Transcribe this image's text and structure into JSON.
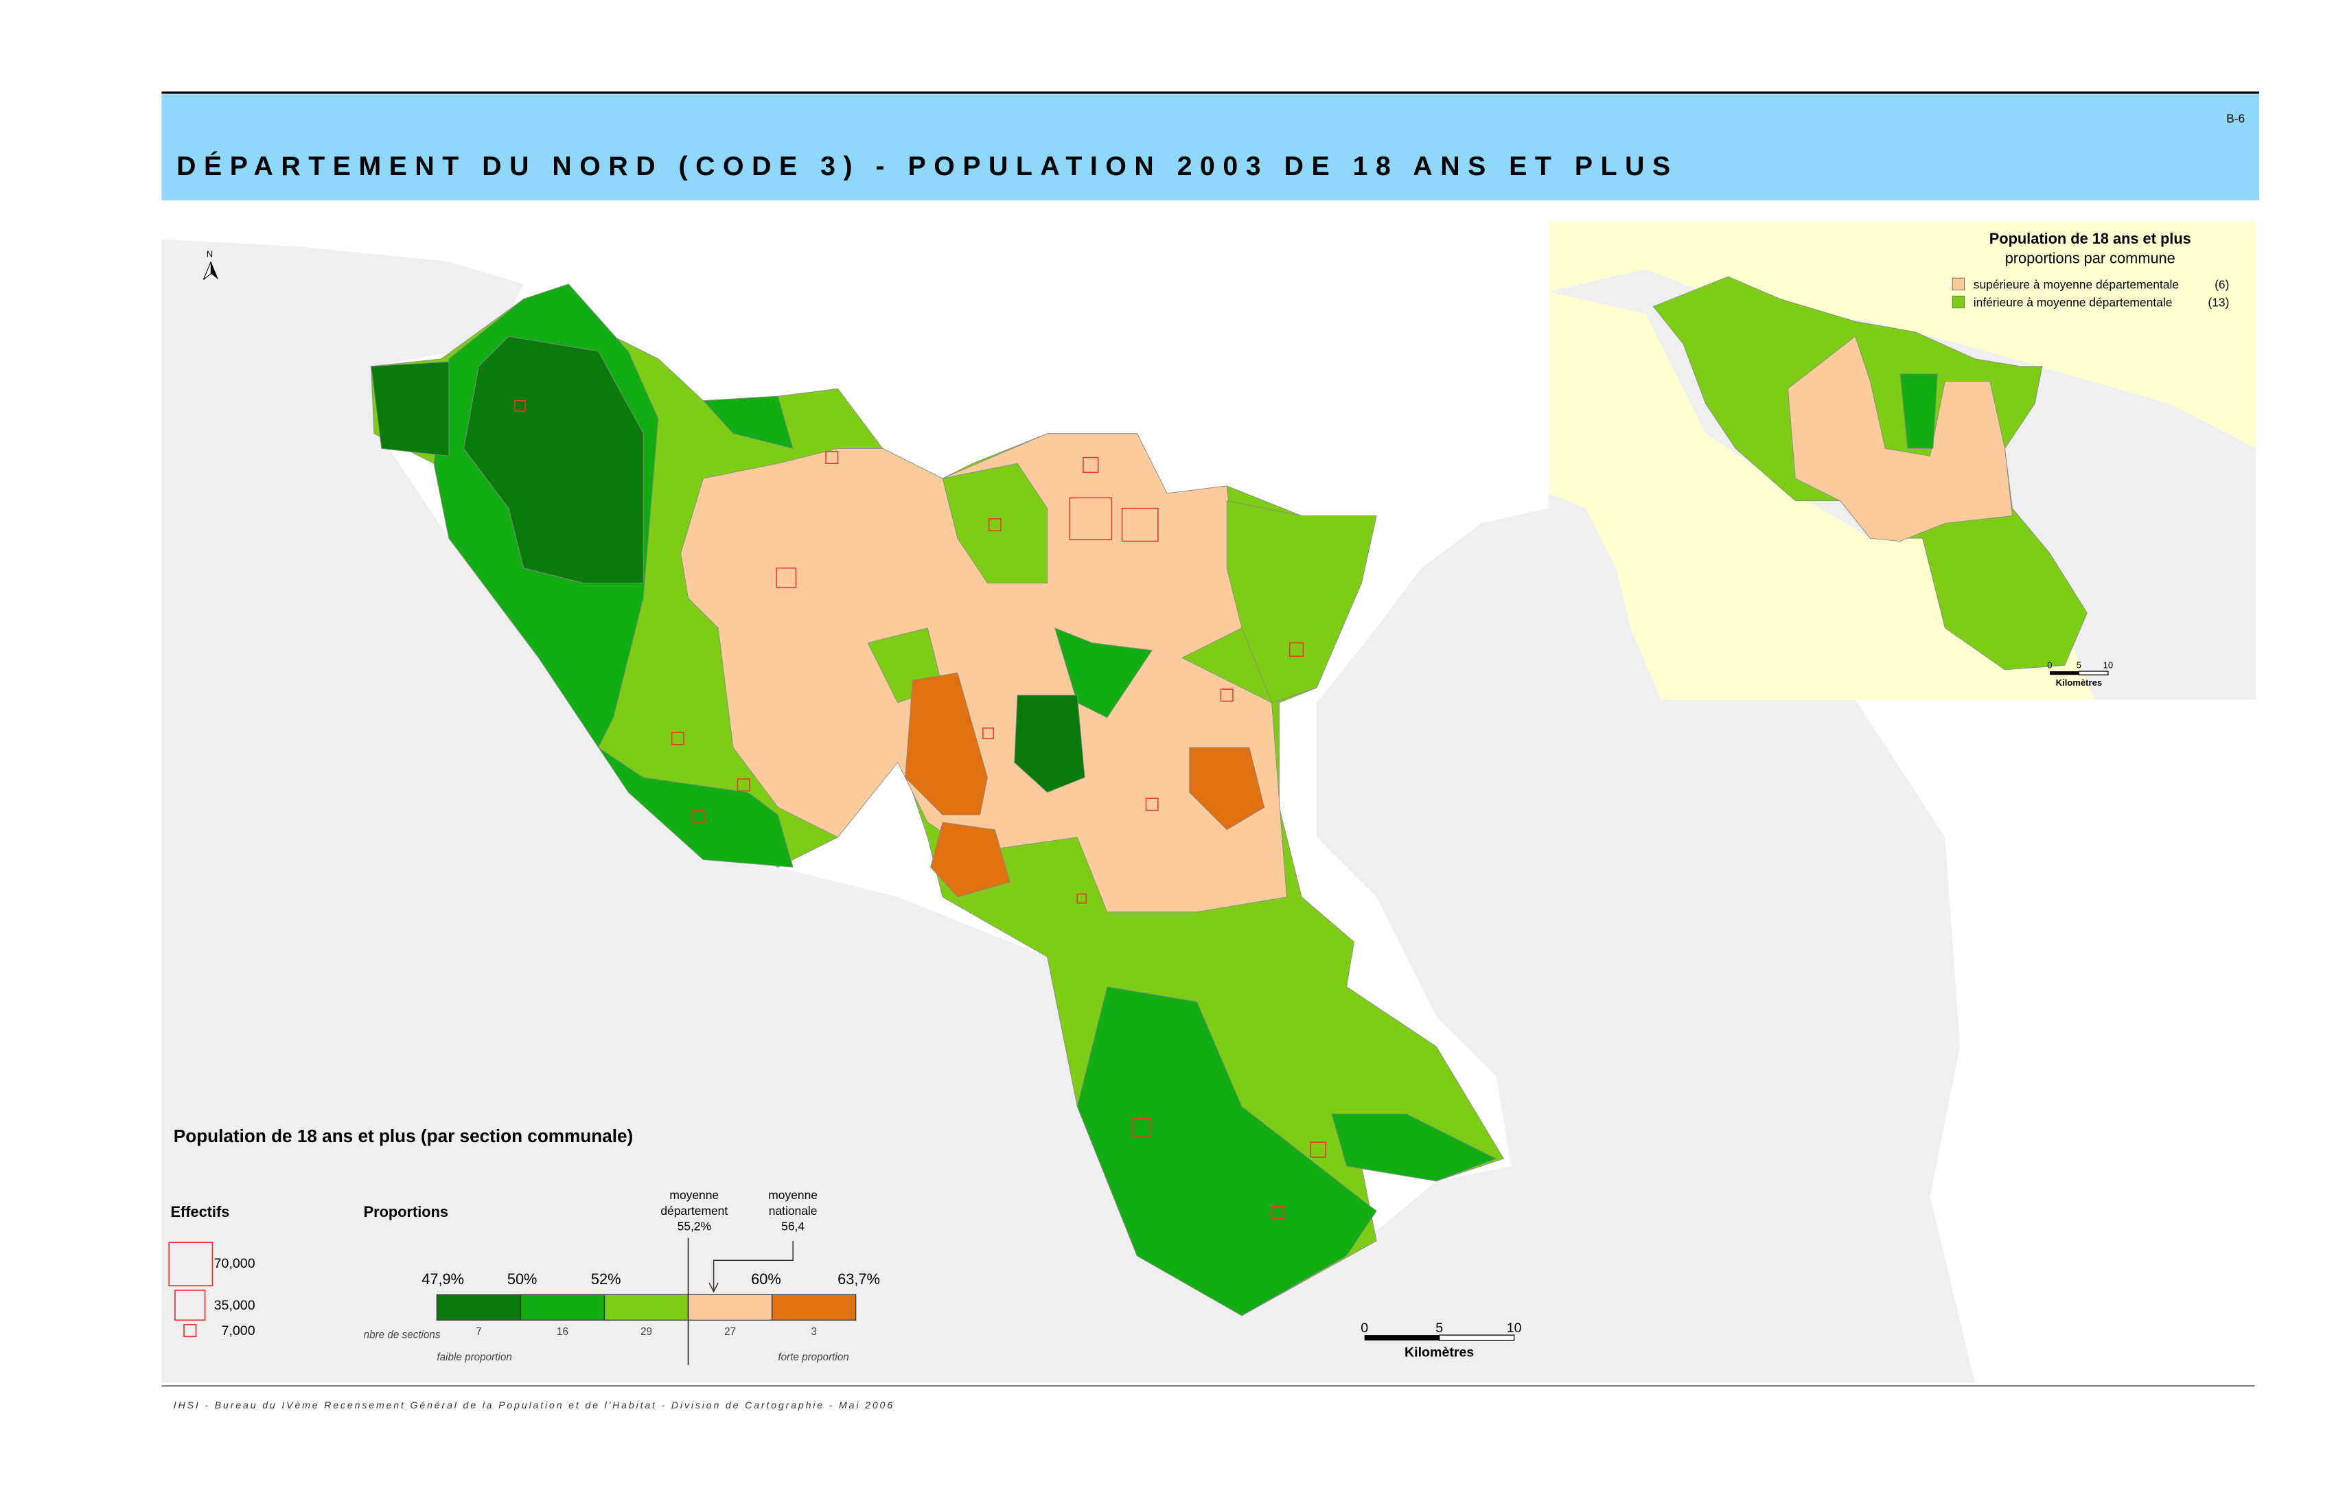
{
  "header": {
    "code": "B-6",
    "title": "DÉPARTEMENT DU NORD (CODE 3) - POPULATION 2003 DE 18 ANS ET PLUS"
  },
  "north": "N",
  "inset": {
    "title": "Population de 18 ans et plus",
    "subtitle": "proportions par commune",
    "legend": [
      {
        "label": "supérieure à moyenne départementale",
        "count": "(6)",
        "color": "#fbcb9c"
      },
      {
        "label": "inférieure à moyenne départementale",
        "count": "(13)",
        "color": "#7ccd14"
      }
    ],
    "scale": {
      "ticks": [
        "0",
        "5",
        "10"
      ],
      "unit": "Kilomètres"
    }
  },
  "legend": {
    "title": "Population de 18 ans et plus (par section communale)",
    "effectifs": {
      "title": "Effectifs",
      "sizes": [
        "70,000",
        "35,000",
        "7,000"
      ]
    },
    "proportions": {
      "title": "Proportions",
      "breaks": [
        "47,9%",
        "50%",
        "52%",
        "60%",
        "63,7%"
      ],
      "classes": [
        {
          "color": "#0a7a0a",
          "count": 7
        },
        {
          "color": "#12ad12",
          "count": 16
        },
        {
          "color": "#7ccd14",
          "count": 29
        },
        {
          "color": "#fbcb9c",
          "count": 27
        },
        {
          "color": "#e07010",
          "count": 3
        }
      ],
      "count_label": "nbre de sections",
      "low": "faible proportion",
      "high": "forte proportion",
      "dept_mean": [
        "moyenne",
        "département",
        "55,2%"
      ],
      "national_mean": [
        "moyenne",
        "nationale",
        "56,4"
      ]
    }
  },
  "scale": {
    "ticks": [
      "0",
      "5",
      "10"
    ],
    "unit": "Kilomètres"
  },
  "footer": "IHSI - Bureau du IVème Recensement Général de la Population et de l'Habitat - Division de Cartographie - Mai 2006"
}
